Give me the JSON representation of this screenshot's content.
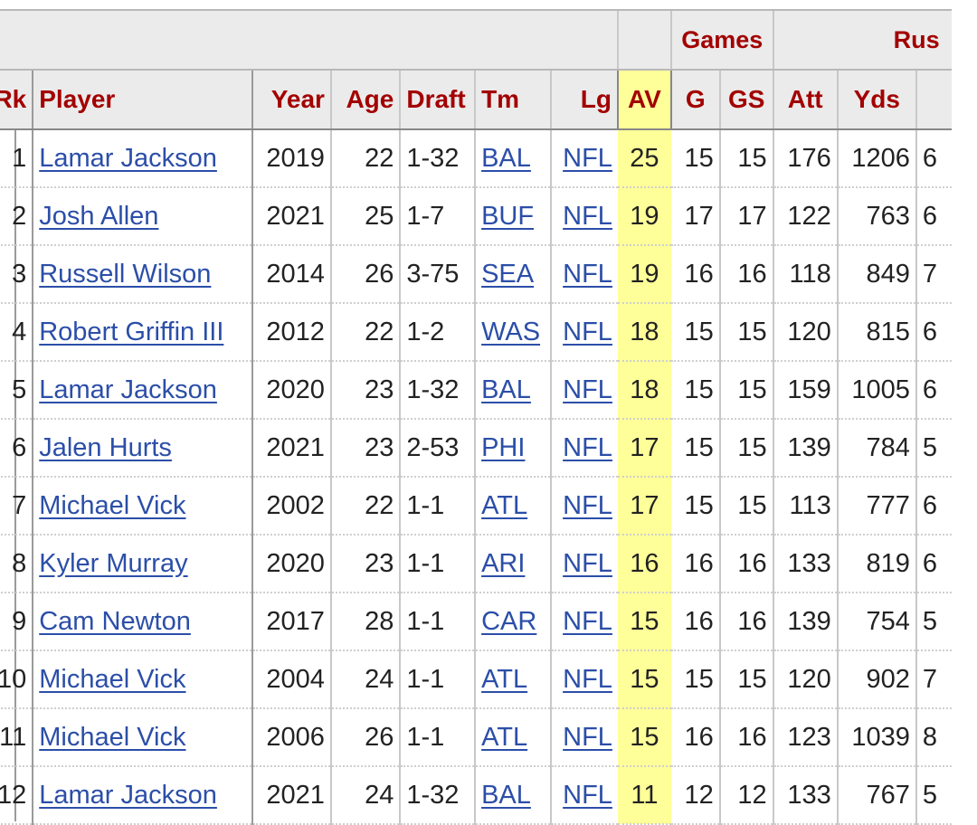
{
  "table": {
    "group_headers": {
      "games": "Games",
      "rushing": "Rus"
    },
    "columns": {
      "rk": "Rk",
      "player": "Player",
      "year": "Year",
      "age": "Age",
      "draft": "Draft",
      "tm": "Tm",
      "lg": "Lg",
      "av": "AV",
      "g": "G",
      "gs": "GS",
      "att": "Att",
      "yds": "Yds"
    },
    "rows": [
      {
        "rk": "1",
        "player": "Lamar Jackson",
        "year": "2019",
        "age": "22",
        "draft": "1-32",
        "tm": "BAL",
        "lg": "NFL",
        "av": "25",
        "g": "15",
        "gs": "15",
        "att": "176",
        "yds": "1206",
        "extra": "6"
      },
      {
        "rk": "2",
        "player": "Josh Allen",
        "year": "2021",
        "age": "25",
        "draft": "1-7",
        "tm": "BUF",
        "lg": "NFL",
        "av": "19",
        "g": "17",
        "gs": "17",
        "att": "122",
        "yds": "763",
        "extra": "6"
      },
      {
        "rk": "3",
        "player": "Russell Wilson",
        "year": "2014",
        "age": "26",
        "draft": "3-75",
        "tm": "SEA",
        "lg": "NFL",
        "av": "19",
        "g": "16",
        "gs": "16",
        "att": "118",
        "yds": "849",
        "extra": "7"
      },
      {
        "rk": "4",
        "player": "Robert Griffin III",
        "year": "2012",
        "age": "22",
        "draft": "1-2",
        "tm": "WAS",
        "lg": "NFL",
        "av": "18",
        "g": "15",
        "gs": "15",
        "att": "120",
        "yds": "815",
        "extra": "6"
      },
      {
        "rk": "5",
        "player": "Lamar Jackson",
        "year": "2020",
        "age": "23",
        "draft": "1-32",
        "tm": "BAL",
        "lg": "NFL",
        "av": "18",
        "g": "15",
        "gs": "15",
        "att": "159",
        "yds": "1005",
        "extra": "6"
      },
      {
        "rk": "6",
        "player": "Jalen Hurts",
        "year": "2021",
        "age": "23",
        "draft": "2-53",
        "tm": "PHI",
        "lg": "NFL",
        "av": "17",
        "g": "15",
        "gs": "15",
        "att": "139",
        "yds": "784",
        "extra": "5"
      },
      {
        "rk": "7",
        "player": "Michael Vick",
        "year": "2002",
        "age": "22",
        "draft": "1-1",
        "tm": "ATL",
        "lg": "NFL",
        "av": "17",
        "g": "15",
        "gs": "15",
        "att": "113",
        "yds": "777",
        "extra": "6"
      },
      {
        "rk": "8",
        "player": "Kyler Murray",
        "year": "2020",
        "age": "23",
        "draft": "1-1",
        "tm": "ARI",
        "lg": "NFL",
        "av": "16",
        "g": "16",
        "gs": "16",
        "att": "133",
        "yds": "819",
        "extra": "6"
      },
      {
        "rk": "9",
        "player": "Cam Newton",
        "year": "2017",
        "age": "28",
        "draft": "1-1",
        "tm": "CAR",
        "lg": "NFL",
        "av": "15",
        "g": "16",
        "gs": "16",
        "att": "139",
        "yds": "754",
        "extra": "5"
      },
      {
        "rk": "10",
        "player": "Michael Vick",
        "year": "2004",
        "age": "24",
        "draft": "1-1",
        "tm": "ATL",
        "lg": "NFL",
        "av": "15",
        "g": "15",
        "gs": "15",
        "att": "120",
        "yds": "902",
        "extra": "7"
      },
      {
        "rk": "11",
        "player": "Michael Vick",
        "year": "2006",
        "age": "26",
        "draft": "1-1",
        "tm": "ATL",
        "lg": "NFL",
        "av": "15",
        "g": "16",
        "gs": "16",
        "att": "123",
        "yds": "1039",
        "extra": "8"
      },
      {
        "rk": "12",
        "player": "Lamar Jackson",
        "year": "2021",
        "age": "24",
        "draft": "1-32",
        "tm": "BAL",
        "lg": "NFL",
        "av": "11",
        "g": "12",
        "gs": "12",
        "att": "133",
        "yds": "767",
        "extra": "5"
      }
    ]
  },
  "colors": {
    "header_text": "#a30000",
    "link": "#2b4ea8",
    "highlight": "#ffff99",
    "header_bg": "#ebebeb"
  }
}
